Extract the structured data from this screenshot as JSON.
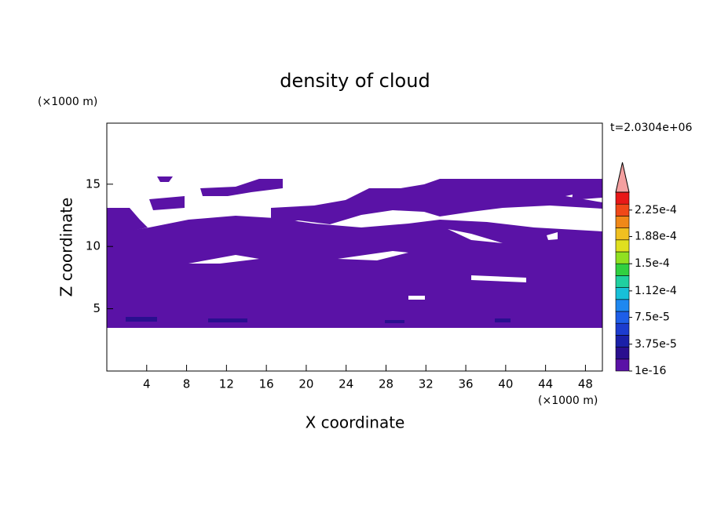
{
  "chart_data": {
    "type": "contour",
    "title": "density of cloud",
    "x_label": "X coordinate",
    "y_label": "Z coordinate",
    "x_unit": "(×1000 m)",
    "y_unit": "(×1000 m)",
    "time_label": "t=2.0304e+06",
    "xlim": [
      0,
      49.7
    ],
    "ylim": [
      0,
      19.9
    ],
    "xticks": [
      4,
      8,
      12,
      16,
      20,
      24,
      28,
      32,
      36,
      40,
      44,
      48
    ],
    "yticks": [
      5,
      10,
      15
    ],
    "fill_color": "#5a12a6",
    "colorbar": {
      "clim": [
        0,
        0.00025
      ],
      "colors": [
        "#5a12a6",
        "#2a0f8f",
        "#1a20a8",
        "#1c3ccf",
        "#1e5ee8",
        "#1e88f0",
        "#18c0d8",
        "#20d0a0",
        "#30d040",
        "#90e020",
        "#e0e020",
        "#f0c020",
        "#f08818",
        "#f04818",
        "#e81818"
      ],
      "extend_color": "#f4a0a0",
      "ticks": [
        {
          "value": 1e-16,
          "label": "1e-16"
        },
        {
          "value": 3.75e-05,
          "label": "3.75e-5"
        },
        {
          "value": 7.5e-05,
          "label": "7.5e-5"
        },
        {
          "value": 0.000112,
          "label": "1.12e-4"
        },
        {
          "value": 0.00015,
          "label": "1.5e-4"
        },
        {
          "value": 0.000188,
          "label": "1.88e-4"
        },
        {
          "value": 0.000225,
          "label": "2.25e-4"
        }
      ]
    }
  }
}
